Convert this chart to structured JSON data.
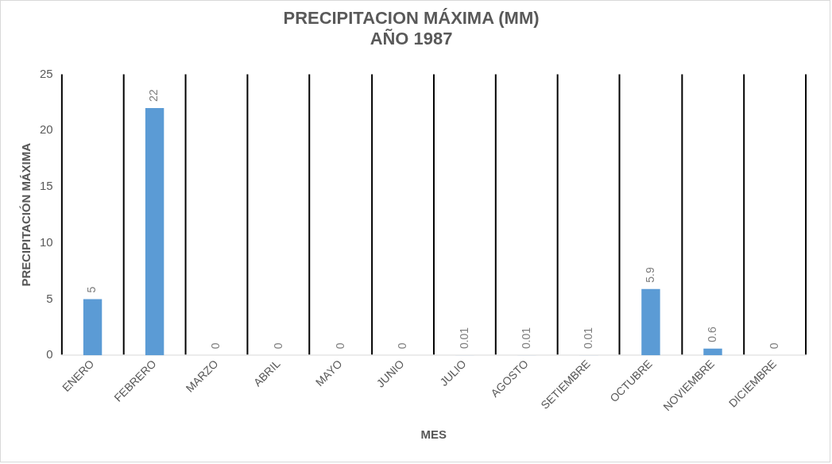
{
  "chart_data": {
    "type": "bar",
    "title": "PRECIPITACION MÁXIMA (MM)\nAÑO 1987",
    "xlabel": "MES",
    "ylabel": "PRECIPITACIÓN MÁXIMA",
    "categories": [
      "ENERO",
      "FEBRERO",
      "MARZO",
      "ABRIL",
      "MAYO",
      "JUNIO",
      "JULIO",
      "AGOSTO",
      "SETIEMBRE",
      "OCTUBRE",
      "NOVIEMBRE",
      "DICIEMBRE"
    ],
    "values": [
      5,
      22,
      0,
      0,
      0,
      0,
      0.01,
      0.01,
      0.01,
      5.9,
      0.6,
      0
    ],
    "color": "#5b9bd5",
    "ylim": [
      0,
      25
    ],
    "yticks": [
      0,
      5,
      10,
      15,
      20,
      25
    ],
    "grid": "x",
    "data_labels": true
  }
}
